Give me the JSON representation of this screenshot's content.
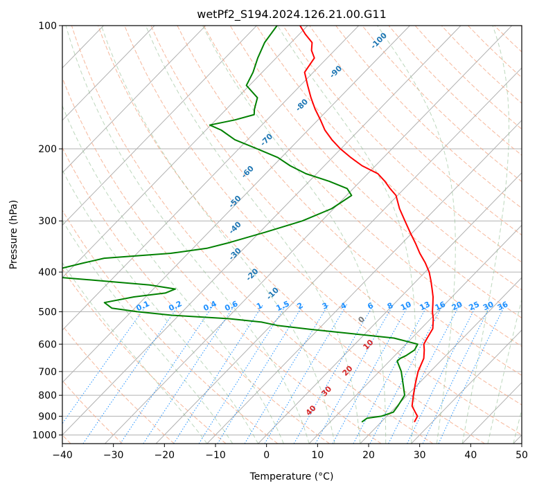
{
  "chart_data": {
    "type": "line",
    "subtype": "skew-t log-p diagram",
    "title": "wetPf2_S194.2024.126.21.00.G11",
    "xlabel": "Temperature (°C)",
    "ylabel": "Pressure (hPa)",
    "xlim": [
      -40,
      50
    ],
    "ylim": [
      1050,
      100
    ],
    "y_scale": "log",
    "grid": true,
    "x_ticks": [
      -40,
      -30,
      -20,
      -10,
      0,
      10,
      20,
      30,
      40,
      50
    ],
    "y_ticks": [
      100,
      200,
      300,
      400,
      500,
      600,
      700,
      800,
      900,
      1000
    ],
    "series": [
      {
        "color": "#ff0000",
        "points": [
          [
            26.5,
            930
          ],
          [
            26,
            900
          ],
          [
            24.8,
            880
          ],
          [
            23,
            850
          ],
          [
            21.2,
            800
          ],
          [
            19.4,
            750
          ],
          [
            17.6,
            700
          ],
          [
            16.2,
            650
          ],
          [
            14.7,
            620
          ],
          [
            13.5,
            600
          ],
          [
            13,
            580
          ],
          [
            12.3,
            550
          ],
          [
            10.5,
            520
          ],
          [
            9,
            500
          ],
          [
            7.7,
            480
          ],
          [
            6.3,
            460
          ],
          [
            4.6,
            440
          ],
          [
            2.8,
            420
          ],
          [
            0.8,
            400
          ],
          [
            -1.7,
            380
          ],
          [
            -4.6,
            360
          ],
          [
            -7.4,
            340
          ],
          [
            -10.5,
            320
          ],
          [
            -13.7,
            300
          ],
          [
            -17.1,
            280
          ],
          [
            -20.3,
            260
          ],
          [
            -22.8,
            250
          ],
          [
            -25.2,
            240
          ],
          [
            -28,
            230
          ],
          [
            -32.6,
            220
          ],
          [
            -36.4,
            210
          ],
          [
            -40.1,
            200
          ],
          [
            -43.5,
            190
          ],
          [
            -46.7,
            180
          ],
          [
            -49.5,
            170
          ],
          [
            -52.6,
            160
          ],
          [
            -55.6,
            150
          ],
          [
            -58.6,
            140
          ],
          [
            -61.7,
            130
          ],
          [
            -62.5,
            120
          ],
          [
            -64.5,
            115
          ],
          [
            -65.9,
            110
          ],
          [
            -68.8,
            105
          ],
          [
            -71.5,
            100
          ]
        ]
      },
      {
        "color": "#008000",
        "points": [
          [
            16.2,
            930
          ],
          [
            16.5,
            910
          ],
          [
            18.9,
            900
          ],
          [
            20.5,
            880
          ],
          [
            20.2,
            850
          ],
          [
            19.5,
            800
          ],
          [
            17,
            750
          ],
          [
            14.3,
            700
          ],
          [
            11.5,
            660
          ],
          [
            11.6,
            650
          ],
          [
            12.2,
            640
          ],
          [
            12.8,
            620
          ],
          [
            12.3,
            600
          ],
          [
            6.5,
            580
          ],
          [
            -3.1,
            565
          ],
          [
            -11.7,
            552
          ],
          [
            -18.8,
            540
          ],
          [
            -22.5,
            530
          ],
          [
            -29.5,
            520
          ],
          [
            -41.4,
            510
          ],
          [
            -48.8,
            500
          ],
          [
            -54.5,
            490
          ],
          [
            -57,
            475
          ],
          [
            -52.3,
            460
          ],
          [
            -46.9,
            450
          ],
          [
            -45.7,
            440
          ],
          [
            -51.5,
            430
          ],
          [
            -62,
            420
          ],
          [
            -73.2,
            410
          ],
          [
            -73.6,
            400
          ],
          [
            -71.5,
            390
          ],
          [
            -68.6,
            380
          ],
          [
            -65.5,
            370
          ],
          [
            -53.4,
            360
          ],
          [
            -47.3,
            350
          ],
          [
            -44.3,
            340
          ],
          [
            -39,
            320
          ],
          [
            -33.8,
            300
          ],
          [
            -30.4,
            280
          ],
          [
            -29,
            260
          ],
          [
            -31.2,
            250
          ],
          [
            -36.1,
            240
          ],
          [
            -42.1,
            230
          ],
          [
            -46.7,
            220
          ],
          [
            -50.7,
            210
          ],
          [
            -56.4,
            200
          ],
          [
            -62.5,
            190
          ],
          [
            -67,
            180
          ],
          [
            -70.2,
            175
          ],
          [
            -66.3,
            170
          ],
          [
            -63.5,
            165
          ],
          [
            -64.5,
            160
          ],
          [
            -66.1,
            150
          ],
          [
            -70.6,
            140
          ],
          [
            -71.8,
            130
          ],
          [
            -73.6,
            120
          ],
          [
            -75.2,
            110
          ],
          [
            -76,
            100
          ]
        ]
      }
    ],
    "annotations": {
      "dry_adiabats": [
        "-100",
        "-90",
        "-80",
        "-70",
        "-60",
        "-50",
        "-40",
        "-30",
        "-20",
        "-10"
      ],
      "mixing_ratios": [
        "0.1",
        "0.2",
        "0.4",
        "0.6",
        "1",
        "1.5",
        "2",
        "3",
        "4",
        "6",
        "8",
        "10",
        "13",
        "16",
        "20",
        "25",
        "30",
        "36"
      ],
      "moist_adiabats": [
        "10",
        "20",
        "30",
        "40"
      ],
      "wet_bulb_zero": "0"
    }
  }
}
